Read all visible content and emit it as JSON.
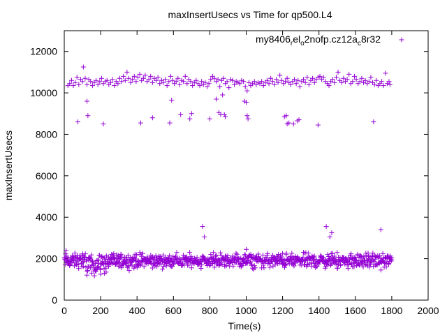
{
  "chart_data": {
    "type": "scatter",
    "title": "maxInsertUsecs vs Time for qp500.L4",
    "xlabel": "Time(s)",
    "ylabel": "maxInsertUsecs",
    "xlim": [
      0,
      2000
    ],
    "ylim": [
      0,
      13000
    ],
    "xticks": [
      0,
      200,
      400,
      600,
      800,
      1000,
      1200,
      1400,
      1600,
      1800,
      2000
    ],
    "yticks": [
      0,
      2000,
      4000,
      6000,
      8000,
      10000,
      12000
    ],
    "grid": false,
    "legend_position": "top-right",
    "marker": "+",
    "color": "#9400d3",
    "series": [
      {
        "name": "my8406_rel_o2nofp.cz12a_c8r32",
        "legend_parts": [
          {
            "text": "my8406",
            "sub": false
          },
          {
            "text": "r",
            "sub": true
          },
          {
            "text": "el",
            "sub": false
          },
          {
            "text": "o",
            "sub": true
          },
          {
            "text": "2nofp.cz12a",
            "sub": false
          },
          {
            "text": "c",
            "sub": true
          },
          {
            "text": "8r32",
            "sub": false
          }
        ],
        "points_high": [
          [
            20,
            10350
          ],
          [
            30,
            10450
          ],
          [
            40,
            10600
          ],
          [
            50,
            10350
          ],
          [
            60,
            10500
          ],
          [
            70,
            10750
          ],
          [
            80,
            10400
          ],
          [
            90,
            10650
          ],
          [
            100,
            10550
          ],
          [
            105,
            11250
          ],
          [
            115,
            10700
          ],
          [
            125,
            10400
          ],
          [
            135,
            10650
          ],
          [
            145,
            10550
          ],
          [
            155,
            10350
          ],
          [
            165,
            10500
          ],
          [
            175,
            10600
          ],
          [
            185,
            10400
          ],
          [
            195,
            10550
          ],
          [
            205,
            10700
          ],
          [
            215,
            10450
          ],
          [
            225,
            10550
          ],
          [
            235,
            10600
          ],
          [
            245,
            10400
          ],
          [
            255,
            10500
          ],
          [
            265,
            10650
          ],
          [
            275,
            10350
          ],
          [
            285,
            10550
          ],
          [
            295,
            10450
          ],
          [
            305,
            10700
          ],
          [
            315,
            10550
          ],
          [
            325,
            10800
          ],
          [
            335,
            10600
          ],
          [
            345,
            11000
          ],
          [
            355,
            10700
          ],
          [
            365,
            10500
          ],
          [
            375,
            10650
          ],
          [
            385,
            10800
          ],
          [
            395,
            10550
          ],
          [
            405,
            10750
          ],
          [
            415,
            10900
          ],
          [
            425,
            10600
          ],
          [
            435,
            10700
          ],
          [
            445,
            10850
          ],
          [
            455,
            10550
          ],
          [
            465,
            10650
          ],
          [
            475,
            10800
          ],
          [
            485,
            10500
          ],
          [
            495,
            10700
          ],
          [
            505,
            10600
          ],
          [
            515,
            10750
          ],
          [
            525,
            10450
          ],
          [
            535,
            10600
          ],
          [
            545,
            10500
          ],
          [
            555,
            10650
          ],
          [
            565,
            10350
          ],
          [
            575,
            10550
          ],
          [
            585,
            10800
          ],
          [
            595,
            10600
          ],
          [
            605,
            10450
          ],
          [
            615,
            10550
          ],
          [
            625,
            10700
          ],
          [
            635,
            10400
          ],
          [
            645,
            10600
          ],
          [
            655,
            10550
          ],
          [
            665,
            10800
          ],
          [
            675,
            10450
          ],
          [
            685,
            10650
          ],
          [
            695,
            10550
          ],
          [
            705,
            10350
          ],
          [
            715,
            10500
          ],
          [
            725,
            10600
          ],
          [
            735,
            10450
          ],
          [
            745,
            10350
          ],
          [
            755,
            10550
          ],
          [
            765,
            10400
          ],
          [
            775,
            10500
          ],
          [
            785,
            10300
          ],
          [
            795,
            10450
          ],
          [
            805,
            10650
          ],
          [
            815,
            10800
          ],
          [
            825,
            10700
          ],
          [
            835,
            10550
          ],
          [
            845,
            10650
          ],
          [
            855,
            10300
          ],
          [
            865,
            10600
          ],
          [
            875,
            10700
          ],
          [
            885,
            10450
          ],
          [
            895,
            10550
          ],
          [
            905,
            10250
          ],
          [
            915,
            10650
          ],
          [
            925,
            10600
          ],
          [
            935,
            10400
          ],
          [
            945,
            10550
          ],
          [
            955,
            10500
          ],
          [
            965,
            10450
          ],
          [
            975,
            10600
          ],
          [
            985,
            10550
          ],
          [
            995,
            10300
          ],
          [
            1005,
            10100
          ],
          [
            1015,
            10500
          ],
          [
            1025,
            10350
          ],
          [
            1035,
            10450
          ],
          [
            1045,
            10550
          ],
          [
            1055,
            10400
          ],
          [
            1065,
            10500
          ],
          [
            1075,
            10450
          ],
          [
            1085,
            10550
          ],
          [
            1095,
            10350
          ],
          [
            1105,
            10500
          ],
          [
            1115,
            10600
          ],
          [
            1125,
            10450
          ],
          [
            1135,
            10700
          ],
          [
            1145,
            10550
          ],
          [
            1155,
            10400
          ],
          [
            1165,
            10650
          ],
          [
            1175,
            10500
          ],
          [
            1185,
            10850
          ],
          [
            1195,
            10600
          ],
          [
            1205,
            10450
          ],
          [
            1215,
            10550
          ],
          [
            1225,
            10700
          ],
          [
            1235,
            10500
          ],
          [
            1245,
            10400
          ],
          [
            1255,
            10550
          ],
          [
            1265,
            10650
          ],
          [
            1275,
            10450
          ],
          [
            1285,
            10600
          ],
          [
            1295,
            10300
          ],
          [
            1305,
            10550
          ],
          [
            1315,
            10650
          ],
          [
            1325,
            10500
          ],
          [
            1335,
            10750
          ],
          [
            1345,
            10400
          ],
          [
            1355,
            10600
          ],
          [
            1365,
            10700
          ],
          [
            1375,
            10500
          ],
          [
            1385,
            10650
          ],
          [
            1395,
            10750
          ],
          [
            1405,
            10800
          ],
          [
            1415,
            10650
          ],
          [
            1425,
            10750
          ],
          [
            1435,
            10550
          ],
          [
            1445,
            10450
          ],
          [
            1455,
            10350
          ],
          [
            1465,
            10550
          ],
          [
            1475,
            10650
          ],
          [
            1485,
            10500
          ],
          [
            1495,
            10750
          ],
          [
            1505,
            11000
          ],
          [
            1515,
            10600
          ],
          [
            1525,
            10500
          ],
          [
            1535,
            10700
          ],
          [
            1545,
            10550
          ],
          [
            1555,
            10650
          ],
          [
            1565,
            10900
          ],
          [
            1575,
            10450
          ],
          [
            1585,
            10550
          ],
          [
            1595,
            10800
          ],
          [
            1605,
            10650
          ],
          [
            1615,
            10450
          ],
          [
            1625,
            10550
          ],
          [
            1635,
            10700
          ],
          [
            1645,
            10500
          ],
          [
            1655,
            10600
          ],
          [
            1665,
            10450
          ],
          [
            1675,
            10550
          ],
          [
            1685,
            10750
          ],
          [
            1695,
            10500
          ],
          [
            1705,
            10400
          ],
          [
            1715,
            10600
          ],
          [
            1725,
            10350
          ],
          [
            1735,
            10450
          ],
          [
            1745,
            10550
          ],
          [
            1755,
            10350
          ],
          [
            1765,
            10950
          ],
          [
            1775,
            10450
          ],
          [
            1785,
            10550
          ],
          [
            1790,
            10400
          ]
        ],
        "points_outliers": [
          [
            75,
            8600
          ],
          [
            125,
            9600
          ],
          [
            130,
            8900
          ],
          [
            215,
            8500
          ],
          [
            420,
            8550
          ],
          [
            485,
            8800
          ],
          [
            580,
            8550
          ],
          [
            590,
            9650
          ],
          [
            640,
            8950
          ],
          [
            690,
            8750
          ],
          [
            700,
            9000
          ],
          [
            800,
            8750
          ],
          [
            835,
            9700
          ],
          [
            850,
            9050
          ],
          [
            860,
            8950
          ],
          [
            870,
            9900
          ],
          [
            880,
            8950
          ],
          [
            885,
            8850
          ],
          [
            990,
            9600
          ],
          [
            1000,
            9550
          ],
          [
            1005,
            8900
          ],
          [
            1010,
            8750
          ],
          [
            1210,
            8850
          ],
          [
            1220,
            8900
          ],
          [
            1225,
            8500
          ],
          [
            1235,
            8550
          ],
          [
            1260,
            8500
          ],
          [
            1280,
            8650
          ],
          [
            1290,
            8700
          ],
          [
            1395,
            8450
          ],
          [
            1700,
            8600
          ],
          [
            760,
            3550
          ],
          [
            770,
            3050
          ],
          [
            1440,
            3550
          ],
          [
            1460,
            3050
          ],
          [
            1470,
            3250
          ],
          [
            1740,
            3400
          ]
        ],
        "points_low_band": {
          "x_range": [
            0,
            1800
          ],
          "y_center": 1900,
          "y_spread": 500,
          "count": 900,
          "spikes": [
            [
              10,
              2400
            ],
            [
              100,
              2150
            ],
            [
              300,
              2100
            ],
            [
              820,
              2300
            ],
            [
              1000,
              2450
            ],
            [
              1200,
              2250
            ],
            [
              1500,
              2300
            ],
            [
              150,
              1300
            ],
            [
              200,
              1250
            ],
            [
              230,
              1350
            ]
          ]
        }
      }
    ]
  }
}
